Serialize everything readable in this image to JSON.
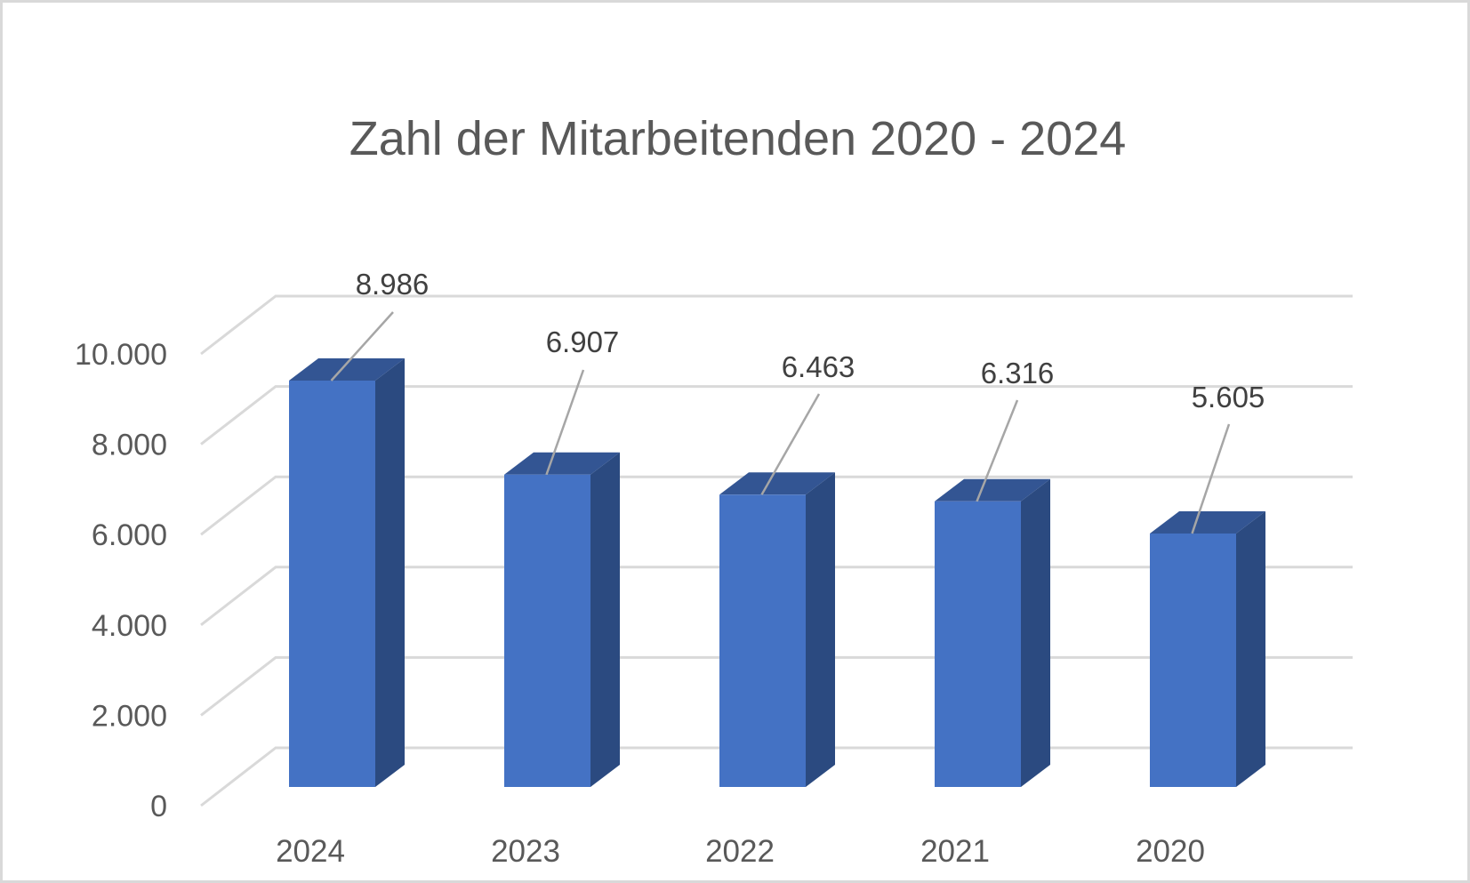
{
  "chart": {
    "title": "Zahl der Mitarbeitenden 2020 - 2024"
  },
  "colors": {
    "bar_front": "#4472C4",
    "bar_top": "#335593",
    "bar_side": "#2B4A80",
    "gridline": "#D9D9D9",
    "leader_line": "#A6A6A6",
    "axis_text": "#595959",
    "data_label_text": "#404040",
    "border": "#D9D9D9"
  },
  "chart_data": {
    "type": "bar",
    "title": "Zahl der Mitarbeitenden 2020 - 2024",
    "xlabel": "",
    "ylabel": "",
    "categories": [
      "2024",
      "2023",
      "2022",
      "2021",
      "2020"
    ],
    "values": [
      8986,
      6907,
      6463,
      6316,
      5605
    ],
    "data_labels": [
      "8.986",
      "6.907",
      "6.463",
      "6.316",
      "5.605"
    ],
    "y_ticks": [
      0,
      2000,
      4000,
      6000,
      8000,
      10000
    ],
    "y_tick_labels": [
      "0",
      "2.000",
      "4.000",
      "6.000",
      "8.000",
      "10.000"
    ],
    "ylim": [
      0,
      10000
    ],
    "grid": true,
    "legend": null,
    "style": "3d-clustered-column"
  }
}
